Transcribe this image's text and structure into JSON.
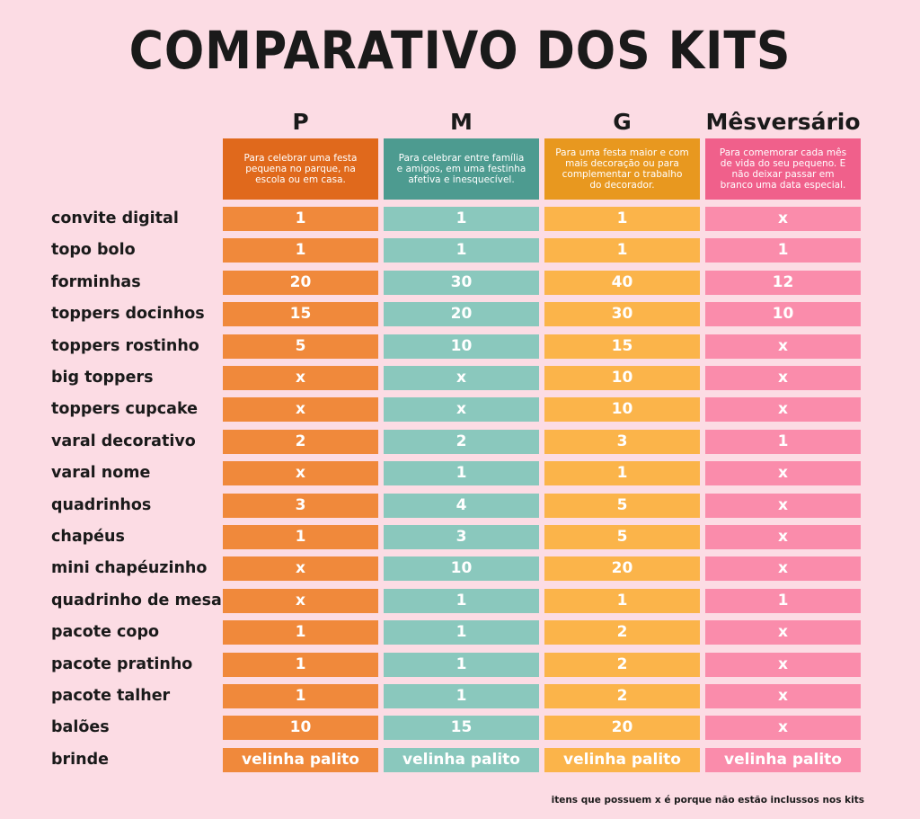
{
  "title": "COMPARATIVO DOS KITS",
  "columns": [
    {
      "name": "P",
      "description": "Para celebrar uma festa pequena no parque, na escola ou em casa."
    },
    {
      "name": "M",
      "description": "Para celebrar entre família e amigos, em uma festinha afetiva e inesquecível."
    },
    {
      "name": "G",
      "description": "Para uma festa maior e com mais decoração ou para complementar o trabalho do decorador."
    },
    {
      "name": "Mêsversário",
      "description": "Para comemorar cada mês de vida do seu pequeno. E não deixar passar em branco uma data especial."
    }
  ],
  "rows": [
    {
      "label": "convite digital",
      "values": [
        "1",
        "1",
        "1",
        "x"
      ]
    },
    {
      "label": "topo bolo",
      "values": [
        "1",
        "1",
        "1",
        "1"
      ]
    },
    {
      "label": "forminhas",
      "values": [
        "20",
        "30",
        "40",
        "12"
      ]
    },
    {
      "label": "toppers docinhos",
      "values": [
        "15",
        "20",
        "30",
        "10"
      ]
    },
    {
      "label": "toppers rostinho",
      "values": [
        "5",
        "10",
        "15",
        "x"
      ]
    },
    {
      "label": "big toppers",
      "values": [
        "x",
        "x",
        "10",
        "x"
      ]
    },
    {
      "label": "toppers cupcake",
      "values": [
        "x",
        "x",
        "10",
        "x"
      ]
    },
    {
      "label": "varal decorativo",
      "values": [
        "2",
        "2",
        "3",
        "1"
      ]
    },
    {
      "label": "varal nome",
      "values": [
        "x",
        "1",
        "1",
        "x"
      ]
    },
    {
      "label": "quadrinhos",
      "values": [
        "3",
        "4",
        "5",
        "x"
      ]
    },
    {
      "label": "chapéus",
      "values": [
        "1",
        "3",
        "5",
        "x"
      ]
    },
    {
      "label": "mini chapéuzinho",
      "values": [
        "x",
        "10",
        "20",
        "x"
      ]
    },
    {
      "label": "quadrinho de mesa",
      "values": [
        "x",
        "1",
        "1",
        "1"
      ]
    },
    {
      "label": "pacote copo",
      "values": [
        "1",
        "1",
        "2",
        "x"
      ]
    },
    {
      "label": "pacote pratinho",
      "values": [
        "1",
        "1",
        "2",
        "x"
      ]
    },
    {
      "label": "pacote talher",
      "values": [
        "1",
        "1",
        "2",
        "x"
      ]
    },
    {
      "label": "balões",
      "values": [
        "10",
        "15",
        "20",
        "x"
      ]
    },
    {
      "label": "brinde",
      "values": [
        "velinha palito",
        "velinha palito",
        "velinha palito",
        "velinha palito"
      ]
    }
  ],
  "footnote": "itens que possuem x é porque não estão inclussos nos kits"
}
